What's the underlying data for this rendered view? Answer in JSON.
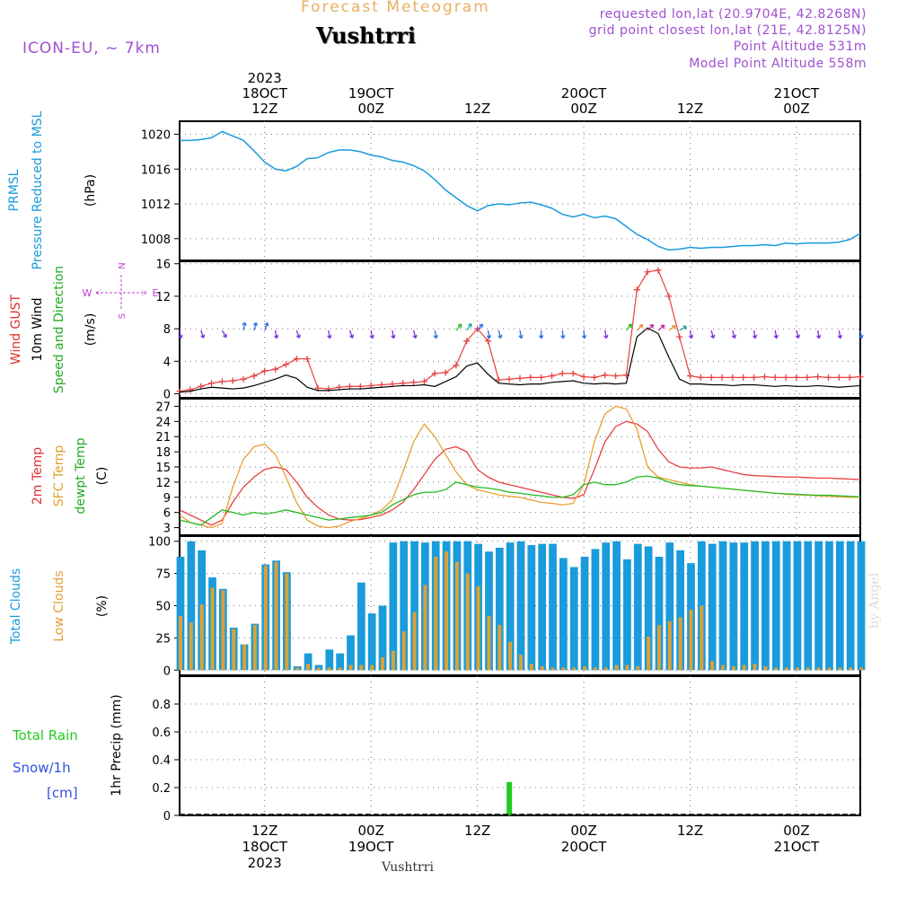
{
  "header": {
    "product_title": "Forecast Meteogram",
    "model": "ICON-EU, ~ 7km",
    "location": "Vushtrri",
    "requested": "requested lon,lat (20.9704E, 42.8268N)",
    "grid_point": "grid point closest lon,lat (21E, 42.8125N)",
    "point_altitude": "Point Altitude 531m",
    "model_altitude": "Model Point Altitude 558m",
    "footer_location": "Vushtrri",
    "credit": "by Angel"
  },
  "top_time_labels": [
    {
      "l1": "2023",
      "l2": "18OCT",
      "l3": "12Z"
    },
    {
      "l1": "",
      "l2": "19OCT",
      "l3": "00Z"
    },
    {
      "l1": "",
      "l2": "",
      "l3": "12Z"
    },
    {
      "l1": "",
      "l2": "20OCT",
      "l3": "00Z"
    },
    {
      "l1": "",
      "l2": "",
      "l3": "12Z"
    },
    {
      "l1": "",
      "l2": "21OCT",
      "l3": "00Z"
    }
  ],
  "bottom_time_labels": [
    {
      "l1": "12Z",
      "l2": "18OCT",
      "l3": "2023"
    },
    {
      "l1": "00Z",
      "l2": "19OCT",
      "l3": ""
    },
    {
      "l1": "12Z",
      "l2": "",
      "l3": ""
    },
    {
      "l1": "00Z",
      "l2": "20OCT",
      "l3": ""
    },
    {
      "l1": "12Z",
      "l2": "",
      "l3": ""
    },
    {
      "l1": "00Z",
      "l2": "21OCT",
      "l3": ""
    }
  ],
  "panel_titles": {
    "pressure": [
      {
        "text": "PRMSL",
        "color": "#1a9bdc"
      },
      {
        "text": "Pressure Reduced to MSL",
        "color": "#1a9bdc"
      },
      {
        "text": "(hPa)",
        "color": "#000000"
      }
    ],
    "wind": [
      {
        "text": "Wind GUST",
        "color": "#e03030"
      },
      {
        "text": "10m Wind",
        "color": "#000000"
      },
      {
        "text": "Speed and Direction",
        "color": "#22aa22"
      },
      {
        "text": "(m/s)",
        "color": "#000000"
      }
    ],
    "wind_compass": {
      "n": "N",
      "s": "S",
      "w": "W",
      "e": "E",
      "color": "#c040d0"
    },
    "temp": [
      {
        "text": "2m Temp",
        "color": "#e03030"
      },
      {
        "text": "SFC Temp",
        "color": "#e0a030"
      },
      {
        "text": "dewpt Temp",
        "color": "#22aa22"
      },
      {
        "text": "(C)",
        "color": "#000000"
      }
    ],
    "clouds": [
      {
        "text": "Total Clouds",
        "color": "#1a9bdc"
      },
      {
        "text": "Low Clouds",
        "color": "#e0a030"
      },
      {
        "text": "(%)",
        "color": "#000000"
      }
    ],
    "precip_left": [
      {
        "text": "Total  Rain",
        "color": "#22cc22"
      },
      {
        "text": "Snow/1h",
        "color": "#3050e0"
      },
      {
        "text": "[cm]",
        "color": "#3050e0"
      }
    ],
    "precip_axis": "1hr Precip (mm)"
  },
  "colors": {
    "pressure": "#1a9bdc",
    "gust": "#e84040",
    "wind": "#000000",
    "t2m": "#e84040",
    "tsfc": "#e8a030",
    "dewpt": "#22bb22",
    "total_clouds": "#1a9bdc",
    "low_clouds": "#e0a030",
    "rain": "#22cc22"
  },
  "chart_data": [
    {
      "type": "line",
      "name_key": "pressure",
      "ylim": [
        1005.5,
        1021.5
      ],
      "yticks": [
        1008,
        1012,
        1016,
        1020
      ],
      "hours": [
        0,
        2,
        4,
        6,
        8,
        10,
        12,
        14,
        16,
        18,
        20,
        22,
        24,
        26,
        28,
        30,
        32,
        34,
        36,
        38,
        40,
        42,
        44,
        46,
        48,
        50,
        52,
        54,
        56,
        58,
        60,
        62,
        64,
        66,
        68,
        70,
        72,
        74,
        76,
        78,
        80,
        82,
        84,
        86,
        88,
        90,
        92,
        94,
        96,
        98,
        100,
        102,
        104,
        106,
        108,
        110,
        112,
        114,
        116,
        118,
        120,
        122,
        124,
        126,
        128
      ],
      "values": [
        1019.3,
        1019.3,
        1019.4,
        1019.6,
        1020.3,
        1019.8,
        1019.3,
        1018.1,
        1016.8,
        1016.0,
        1015.8,
        1016.3,
        1017.2,
        1017.3,
        1017.9,
        1018.2,
        1018.2,
        1018.0,
        1017.6,
        1017.4,
        1017.0,
        1016.8,
        1016.4,
        1015.8,
        1014.8,
        1013.6,
        1012.7,
        1011.8,
        1011.2,
        1011.8,
        1012.0,
        1011.9,
        1012.1,
        1012.2,
        1011.9,
        1011.5,
        1010.8,
        1010.5,
        1010.8,
        1010.4,
        1010.6,
        1010.3,
        1009.4,
        1008.5,
        1007.9,
        1007.1,
        1006.7,
        1006.8,
        1007.0,
        1006.9,
        1007.0,
        1007.0,
        1007.1,
        1007.2,
        1007.2,
        1007.3,
        1007.2,
        1007.5,
        1007.4,
        1007.5,
        1007.5,
        1007.5,
        1007.6,
        1007.9,
        1008.6
      ]
    },
    {
      "type": "line",
      "name_key": "wind",
      "ylim": [
        -0.5,
        16.3
      ],
      "yticks": [
        0,
        4,
        8,
        12,
        16
      ],
      "hours": [
        0,
        2,
        4,
        6,
        8,
        10,
        12,
        14,
        16,
        18,
        20,
        22,
        24,
        26,
        28,
        30,
        32,
        34,
        36,
        38,
        40,
        42,
        44,
        46,
        48,
        50,
        52,
        54,
        56,
        58,
        60,
        62,
        64,
        66,
        68,
        70,
        72,
        74,
        76,
        78,
        80,
        82,
        84,
        86,
        88,
        90,
        92,
        94,
        96,
        98,
        100,
        102,
        104,
        106,
        108,
        110,
        112,
        114,
        116,
        118,
        120,
        122,
        124,
        126,
        128
      ],
      "gust": [
        0.3,
        0.5,
        0.9,
        1.3,
        1.5,
        1.6,
        1.8,
        2.2,
        2.8,
        3.0,
        3.6,
        4.3,
        4.3,
        0.7,
        0.6,
        0.8,
        0.9,
        0.9,
        1.0,
        1.1,
        1.2,
        1.3,
        1.4,
        1.5,
        2.5,
        2.6,
        3.5,
        6.5,
        8.0,
        6.5,
        1.7,
        1.8,
        1.9,
        2.0,
        2.0,
        2.2,
        2.5,
        2.5,
        2.1,
        2.0,
        2.3,
        2.2,
        2.3,
        12.8,
        15.0,
        15.2,
        12.0,
        7.0,
        2.2,
        2.0,
        2.0,
        2.0,
        2.0,
        2.0,
        2.0,
        2.1,
        2.0,
        2.0,
        2.0,
        2.0,
        2.1,
        2.0,
        2.0,
        2.0,
        2.1
      ],
      "wind": [
        0.2,
        0.3,
        0.6,
        0.8,
        0.7,
        0.6,
        0.7,
        1.0,
        1.4,
        1.8,
        2.3,
        1.9,
        0.8,
        0.4,
        0.4,
        0.5,
        0.6,
        0.6,
        0.7,
        0.8,
        0.9,
        1.0,
        1.0,
        1.1,
        0.9,
        1.5,
        2.1,
        3.4,
        3.8,
        2.4,
        1.3,
        1.2,
        1.1,
        1.2,
        1.2,
        1.4,
        1.5,
        1.6,
        1.3,
        1.2,
        1.3,
        1.2,
        1.3,
        7.0,
        8.1,
        7.4,
        4.5,
        1.8,
        1.2,
        1.2,
        1.1,
        1.1,
        1.0,
        1.1,
        1.1,
        1.0,
        0.9,
        1.0,
        0.9,
        0.9,
        1.0,
        0.9,
        0.8,
        0.9,
        1.0
      ],
      "gust_markers_hours": [
        0,
        2,
        4,
        6,
        8,
        10,
        12,
        14,
        16,
        18,
        20,
        22,
        24,
        26,
        28,
        30,
        32,
        34,
        36,
        38,
        40,
        42,
        44,
        46,
        48,
        50,
        52,
        54,
        56,
        58,
        60,
        62,
        64,
        66,
        68,
        70,
        72,
        74,
        76,
        78,
        80,
        82,
        84,
        86,
        88,
        90,
        92,
        94,
        96,
        98,
        100,
        102,
        104,
        106,
        108,
        110,
        112,
        114,
        116,
        118,
        120,
        122,
        124,
        126,
        128
      ],
      "arrows_hours": [
        0,
        4,
        8,
        12,
        14,
        16,
        18,
        22,
        28,
        32,
        36,
        40,
        44,
        48,
        52,
        54,
        56,
        58,
        60,
        64,
        68,
        72,
        76,
        80,
        84,
        86,
        88,
        90,
        92,
        94,
        96,
        100,
        104,
        108,
        112,
        116,
        120,
        124,
        128
      ],
      "arrow_dirs_deg": [
        170,
        160,
        150,
        10,
        15,
        20,
        170,
        160,
        170,
        160,
        170,
        170,
        165,
        170,
        40,
        35,
        40,
        170,
        165,
        170,
        180,
        175,
        175,
        170,
        40,
        45,
        45,
        50,
        55,
        60,
        170,
        165,
        165,
        170,
        170,
        165,
        170,
        170,
        170
      ],
      "arrow_colors": [
        "#7a30e0",
        "#7a30e0",
        "#7a30e0",
        "#3070e8",
        "#3070e8",
        "#3070e8",
        "#7a30e0",
        "#7a30e0",
        "#7a30e0",
        "#7a30e0",
        "#7a30e0",
        "#7a30e0",
        "#7a30e0",
        "#3070e8",
        "#22bb22",
        "#22a0a0",
        "#3070e8",
        "#3070e8",
        "#3070e8",
        "#3070e8",
        "#3070e8",
        "#3070e8",
        "#3070e8",
        "#7a30e0",
        "#22bb22",
        "#e09030",
        "#c020a0",
        "#c020a0",
        "#e09030",
        "#22a0a0",
        "#7a30e0",
        "#7a30e0",
        "#7a30e0",
        "#7a30e0",
        "#7a30e0",
        "#7a30e0",
        "#7a30e0",
        "#7a30e0",
        "#3070e8"
      ]
    },
    {
      "type": "line",
      "name_key": "temperature",
      "ylim": [
        1.5,
        28.5
      ],
      "yticks": [
        3,
        6,
        9,
        12,
        15,
        18,
        21,
        24,
        27
      ],
      "hours": [
        0,
        2,
        4,
        6,
        8,
        10,
        12,
        14,
        16,
        18,
        20,
        22,
        24,
        26,
        28,
        30,
        32,
        34,
        36,
        38,
        40,
        42,
        44,
        46,
        48,
        50,
        52,
        54,
        56,
        58,
        60,
        62,
        64,
        66,
        68,
        70,
        72,
        74,
        76,
        78,
        80,
        82,
        84,
        86,
        88,
        90,
        92,
        94,
        96,
        98,
        100,
        102,
        104,
        106,
        108,
        110,
        112,
        114,
        116,
        118,
        120,
        122,
        124,
        126,
        128
      ],
      "t2m": [
        6.5,
        5.5,
        4.5,
        3.5,
        4.5,
        8.0,
        11.0,
        13.0,
        14.5,
        15.0,
        14.5,
        12.0,
        9.0,
        7.0,
        5.5,
        4.7,
        4.5,
        4.6,
        5.0,
        5.5,
        6.5,
        8.0,
        10.5,
        13.5,
        16.5,
        18.5,
        19.0,
        18.0,
        14.5,
        13.0,
        12.0,
        11.5,
        11.0,
        10.5,
        10.0,
        9.5,
        9.0,
        8.8,
        9.5,
        14.5,
        20.0,
        23.0,
        24.0,
        23.5,
        22.0,
        18.5,
        16.0,
        15.0,
        14.8,
        14.8,
        15.0,
        14.5,
        14.0,
        13.5,
        13.3,
        13.2,
        13.1,
        13.0,
        13.0,
        12.9,
        12.8,
        12.8,
        12.7,
        12.6,
        12.5
      ],
      "tsfc": [
        5.5,
        4.0,
        3.5,
        3.0,
        3.8,
        11.0,
        16.5,
        19.0,
        19.5,
        17.5,
        13.0,
        8.0,
        4.5,
        3.3,
        3.0,
        3.3,
        4.2,
        4.8,
        5.5,
        6.5,
        8.5,
        14.0,
        20.0,
        23.5,
        21.0,
        17.5,
        14.0,
        11.5,
        10.5,
        10.0,
        9.5,
        9.2,
        9.0,
        8.5,
        8.0,
        7.8,
        7.5,
        7.8,
        11.5,
        20.0,
        25.5,
        27.0,
        26.5,
        22.5,
        15.0,
        13.0,
        12.5,
        12.0,
        11.5,
        11.2,
        11.0,
        10.8,
        10.6,
        10.4,
        10.2,
        10.0,
        9.8,
        9.6,
        9.5,
        9.4,
        9.3,
        9.2,
        9.1,
        9.0,
        9.0
      ],
      "dewpt": [
        4.5,
        4.0,
        3.5,
        5.0,
        6.5,
        6.0,
        5.5,
        6.0,
        5.7,
        6.0,
        6.5,
        6.0,
        5.5,
        5.0,
        4.5,
        4.7,
        5.0,
        5.2,
        5.5,
        6.0,
        7.5,
        8.5,
        9.5,
        10.0,
        10.0,
        10.5,
        12.0,
        11.5,
        11.0,
        10.8,
        10.5,
        10.0,
        9.8,
        9.5,
        9.3,
        9.0,
        9.0,
        9.5,
        11.5,
        12.0,
        11.5,
        11.5,
        12.0,
        13.0,
        13.2,
        12.8,
        12.0,
        11.5,
        11.3,
        11.2,
        11.0,
        10.8,
        10.6,
        10.4,
        10.2,
        10.0,
        9.8,
        9.7,
        9.6,
        9.5,
        9.4,
        9.4,
        9.3,
        9.2,
        9.1
      ]
    },
    {
      "type": "bar",
      "name_key": "clouds",
      "ylim": [
        -4,
        104
      ],
      "yticks": [
        0,
        25,
        50,
        75,
        100
      ],
      "hours": [
        0,
        2,
        4,
        6,
        8,
        10,
        12,
        14,
        16,
        18,
        20,
        22,
        24,
        26,
        28,
        30,
        32,
        34,
        36,
        38,
        40,
        42,
        44,
        46,
        48,
        50,
        52,
        54,
        56,
        58,
        60,
        62,
        64,
        66,
        68,
        70,
        72,
        74,
        76,
        78,
        80,
        82,
        84,
        86,
        88,
        90,
        92,
        94,
        96,
        98,
        100,
        102,
        104,
        106,
        108,
        110,
        112,
        114,
        116,
        118,
        120,
        122,
        124,
        126,
        128
      ],
      "total": [
        88,
        100,
        93,
        72,
        63,
        33,
        20,
        36,
        82,
        85,
        76,
        3,
        13,
        4,
        16,
        13,
        27,
        68,
        44,
        50,
        99,
        100,
        100,
        99,
        100,
        100,
        100,
        100,
        98,
        92,
        95,
        99,
        100,
        97,
        98,
        98,
        87,
        80,
        88,
        94,
        99,
        100,
        86,
        98,
        96,
        88,
        99,
        93,
        83,
        100,
        98,
        100,
        99,
        99,
        100,
        100,
        100,
        100,
        100,
        100,
        100,
        100,
        100,
        100,
        100
      ],
      "low": [
        42,
        37,
        51,
        64,
        62,
        32,
        20,
        35,
        81,
        84,
        75,
        2,
        5,
        2,
        2,
        2,
        4,
        4,
        4,
        10,
        15,
        30,
        45,
        66,
        88,
        92,
        84,
        75,
        65,
        42,
        35,
        22,
        12,
        5,
        3,
        2,
        2,
        2,
        3,
        2,
        2,
        4,
        4,
        3,
        26,
        35,
        38,
        41,
        47,
        50,
        7,
        4,
        3,
        4,
        5,
        3,
        2,
        2,
        2,
        2,
        2,
        2,
        2,
        2,
        2
      ]
    },
    {
      "type": "bar",
      "name_key": "precipitation",
      "ylim": [
        0,
        1.0
      ],
      "yticks": [
        0,
        0.2,
        0.4,
        0.6,
        0.8
      ],
      "hours": [
        62
      ],
      "rain_mm": [
        0.24
      ]
    }
  ]
}
